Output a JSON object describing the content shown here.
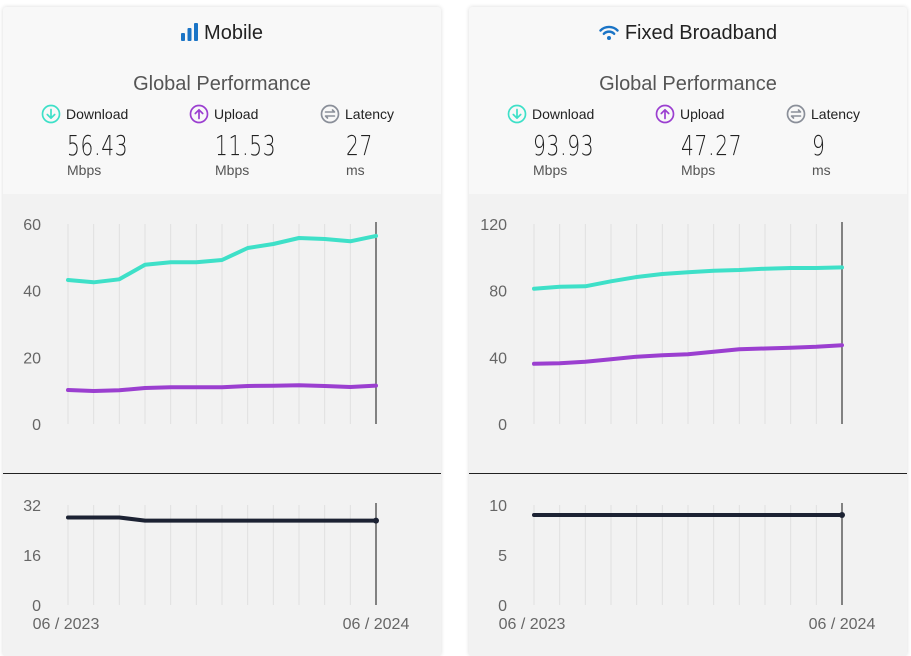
{
  "panels": [
    {
      "id": "mobile",
      "title": "Mobile",
      "title_icon": "signal-bars-icon",
      "subtitle": "Global Performance",
      "metrics": [
        {
          "label": "Download",
          "value": "56.43",
          "unit": "Mbps",
          "icon": "download-arrow-icon",
          "color": "#3ee0c8"
        },
        {
          "label": "Upload",
          "value": "11.53",
          "unit": "Mbps",
          "icon": "upload-arrow-icon",
          "color": "#9b3fd0"
        },
        {
          "label": "Latency",
          "value": "27",
          "unit": "ms",
          "icon": "latency-icon",
          "color": "#8a8f99"
        }
      ]
    },
    {
      "id": "fixed",
      "title": "Fixed Broadband",
      "title_icon": "wifi-icon",
      "subtitle": "Global Performance",
      "metrics": [
        {
          "label": "Download",
          "value": "93.93",
          "unit": "Mbps",
          "icon": "download-arrow-icon",
          "color": "#3ee0c8"
        },
        {
          "label": "Upload",
          "value": "47.27",
          "unit": "Mbps",
          "icon": "upload-arrow-icon",
          "color": "#9b3fd0"
        },
        {
          "label": "Latency",
          "value": "9",
          "unit": "ms",
          "icon": "latency-icon",
          "color": "#8a8f99"
        }
      ]
    }
  ],
  "chart_data": [
    {
      "type": "line",
      "panel": "mobile",
      "metric": "speed",
      "x": [
        "06/2023",
        "07/2023",
        "08/2023",
        "09/2023",
        "10/2023",
        "11/2023",
        "12/2023",
        "01/2024",
        "02/2024",
        "03/2024",
        "04/2024",
        "05/2024",
        "06/2024"
      ],
      "xtick_labels": [
        "06 / 2023",
        "06 / 2024"
      ],
      "ylim": [
        0,
        60
      ],
      "yticks": [
        0,
        20,
        40,
        60
      ],
      "grid": "vertical",
      "series": [
        {
          "name": "Download",
          "color": "#3ee0c8",
          "values": [
            43.2,
            42.5,
            43.4,
            47.8,
            48.5,
            48.5,
            49.2,
            52.8,
            54.0,
            55.8,
            55.5,
            54.8,
            56.43
          ]
        },
        {
          "name": "Upload",
          "color": "#9b3fd0",
          "values": [
            10.2,
            9.9,
            10.1,
            10.8,
            11.0,
            11.0,
            11.0,
            11.4,
            11.5,
            11.6,
            11.4,
            11.1,
            11.53
          ]
        }
      ]
    },
    {
      "type": "line",
      "panel": "mobile",
      "metric": "latency",
      "x": [
        "06/2023",
        "07/2023",
        "08/2023",
        "09/2023",
        "10/2023",
        "11/2023",
        "12/2023",
        "01/2024",
        "02/2024",
        "03/2024",
        "04/2024",
        "05/2024",
        "06/2024"
      ],
      "ylim": [
        0,
        32
      ],
      "yticks": [
        0,
        16,
        32
      ],
      "series": [
        {
          "name": "Latency",
          "color": "#1c2233",
          "values": [
            28,
            28,
            28,
            27,
            27,
            27,
            27,
            27,
            27,
            27,
            27,
            27,
            27
          ]
        }
      ]
    },
    {
      "type": "line",
      "panel": "fixed",
      "metric": "speed",
      "x": [
        "06/2023",
        "07/2023",
        "08/2023",
        "09/2023",
        "10/2023",
        "11/2023",
        "12/2023",
        "01/2024",
        "02/2024",
        "03/2024",
        "04/2024",
        "05/2024",
        "06/2024"
      ],
      "xtick_labels": [
        "06 / 2023",
        "06 / 2024"
      ],
      "ylim": [
        0,
        120
      ],
      "yticks": [
        0,
        40,
        80,
        120
      ],
      "grid": "vertical",
      "series": [
        {
          "name": "Download",
          "color": "#3ee0c8",
          "values": [
            81.2,
            82.4,
            82.6,
            85.6,
            88.2,
            90.0,
            91.0,
            92.0,
            92.4,
            93.2,
            93.6,
            93.6,
            93.93
          ]
        },
        {
          "name": "Upload",
          "color": "#9b3fd0",
          "values": [
            36.1,
            36.5,
            37.4,
            38.8,
            40.4,
            41.3,
            41.9,
            43.4,
            44.9,
            45.3,
            45.8,
            46.3,
            47.27
          ]
        }
      ]
    },
    {
      "type": "line",
      "panel": "fixed",
      "metric": "latency",
      "x": [
        "06/2023",
        "07/2023",
        "08/2023",
        "09/2023",
        "10/2023",
        "11/2023",
        "12/2023",
        "01/2024",
        "02/2024",
        "03/2024",
        "04/2024",
        "05/2024",
        "06/2024"
      ],
      "ylim": [
        0,
        10
      ],
      "yticks": [
        0,
        5,
        10
      ],
      "series": [
        {
          "name": "Latency",
          "color": "#1c2233",
          "values": [
            9,
            9,
            9,
            9,
            9,
            9,
            9,
            9,
            9,
            9,
            9,
            9,
            9
          ]
        }
      ]
    }
  ]
}
